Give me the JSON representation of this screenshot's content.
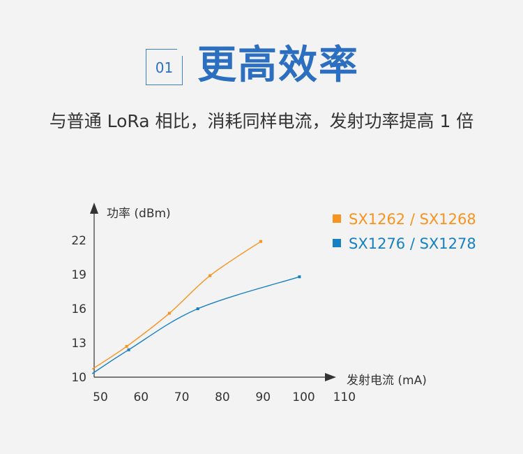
{
  "header": {
    "badge": "01",
    "title": "更高效率",
    "subtitle": "与普通 LoRa 相比，消耗同样电流，发射功率提高 1 倍"
  },
  "chart_data": {
    "type": "line",
    "title": "",
    "xlabel": "发射电流 (mA)",
    "ylabel": "功率 (dBm)",
    "xlim": [
      50,
      110
    ],
    "ylim": [
      10,
      22
    ],
    "xticks": [
      50,
      60,
      70,
      80,
      90,
      100,
      110
    ],
    "yticks": [
      10,
      13,
      16,
      19,
      22
    ],
    "legend": "top-right",
    "grid": false,
    "series": [
      {
        "name": "SX1262 / SX1268",
        "color": "#f7931e",
        "x": [
          49.5,
          58,
          68.5,
          78.5,
          91
        ],
        "y": [
          10.7,
          12.7,
          15.6,
          18.9,
          21.9
        ],
        "markers": [
          [
            58,
            12.7
          ],
          [
            68.5,
            15.6
          ],
          [
            78.5,
            18.9
          ],
          [
            91,
            21.9
          ]
        ]
      },
      {
        "name": "SX1276 / SX1278",
        "color": "#1680c2",
        "x": [
          49.5,
          58.5,
          75.5,
          100.5
        ],
        "y": [
          10.3,
          12.4,
          16.0,
          18.8
        ],
        "markers": [
          [
            58.5,
            12.4
          ],
          [
            75.5,
            16.0
          ],
          [
            100.5,
            18.8
          ]
        ]
      }
    ]
  }
}
